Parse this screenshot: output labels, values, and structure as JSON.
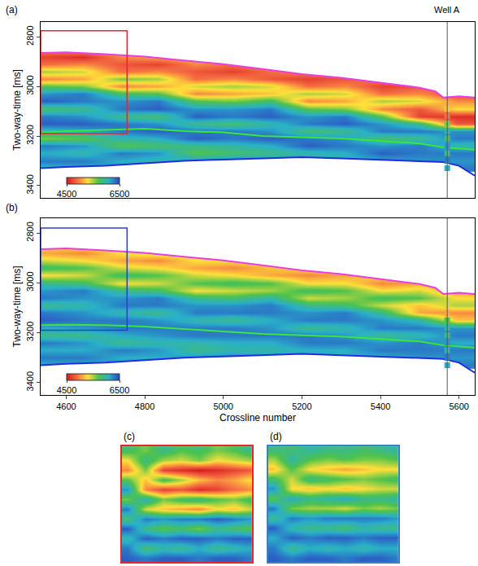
{
  "chart_data": [
    {
      "type": "heatmap",
      "title": "(a)",
      "ylabel": "Two-way-time [ms]",
      "tick_labels": "y",
      "xlim": [
        4535,
        5640
      ],
      "ylim": [
        2740,
        3450
      ],
      "xticks": [
        4600,
        4800,
        5000,
        5200,
        5400,
        5600
      ],
      "yticks": [
        2800,
        3000,
        3200,
        3400
      ],
      "colorbar": {
        "range": [
          4500,
          6500
        ],
        "ticks": [
          4500,
          6500
        ]
      },
      "x": [
        4550,
        4645,
        4740,
        4835,
        4930,
        5025,
        5120,
        5215,
        5310,
        5405,
        5500,
        5595
      ],
      "y": [
        2850,
        2880,
        2910,
        2940,
        2970,
        3000,
        3030,
        3060,
        3090,
        3120,
        3150,
        3180,
        3210,
        3240,
        3270,
        3300,
        3330
      ],
      "z": [
        [
          5000,
          5100,
          5200,
          5200,
          5200,
          5200,
          5200,
          5200,
          5200,
          5200,
          5200,
          5200
        ],
        [
          4700,
          4600,
          5000,
          5100,
          5200,
          5200,
          5200,
          5200,
          5200,
          5200,
          5200,
          5200
        ],
        [
          4900,
          5000,
          4800,
          4700,
          5000,
          4900,
          5100,
          5200,
          5200,
          5200,
          5200,
          5200
        ],
        [
          5500,
          5400,
          4900,
          5000,
          4800,
          4700,
          4900,
          5000,
          4900,
          5200,
          5200,
          5200
        ],
        [
          5000,
          5100,
          5600,
          5500,
          4900,
          5000,
          4800,
          4700,
          4800,
          5000,
          4900,
          5200
        ],
        [
          5700,
          5600,
          5000,
          5100,
          5400,
          5500,
          5400,
          4900,
          5000,
          4700,
          4800,
          5000
        ],
        [
          6200,
          6300,
          5800,
          5700,
          5000,
          5100,
          5200,
          5500,
          5400,
          4900,
          5000,
          4700
        ],
        [
          6400,
          6300,
          6200,
          6300,
          5700,
          5600,
          5800,
          5000,
          5100,
          5500,
          5400,
          5000
        ],
        [
          5800,
          5900,
          6300,
          6400,
          6200,
          6200,
          6300,
          5700,
          5600,
          5000,
          4800,
          5300
        ],
        [
          6300,
          6200,
          5900,
          5800,
          6400,
          6300,
          6400,
          6200,
          6300,
          5700,
          4700,
          4600
        ],
        [
          6400,
          6400,
          6300,
          6200,
          5900,
          5800,
          6000,
          6300,
          6400,
          6200,
          5900,
          4800
        ],
        [
          6000,
          6100,
          6300,
          6400,
          6300,
          6300,
          6200,
          5800,
          5900,
          6300,
          6300,
          6200
        ],
        [
          5600,
          5700,
          6000,
          6100,
          6400,
          6300,
          6400,
          6300,
          6200,
          5800,
          5900,
          6300
        ],
        [
          6300,
          6200,
          5700,
          5800,
          5900,
          6000,
          6100,
          6400,
          6300,
          6200,
          6300,
          6000
        ],
        [
          6100,
          6000,
          6300,
          6200,
          5700,
          5800,
          5900,
          6000,
          6100,
          6400,
          6300,
          6300
        ],
        [
          6300,
          6300,
          6100,
          6000,
          6200,
          6300,
          6200,
          6100,
          6000,
          6100,
          6200,
          6200
        ],
        [
          6000,
          6100,
          6200,
          6300,
          6100,
          6000,
          6100,
          6200,
          6300,
          6200,
          6100,
          6300
        ]
      ],
      "horizons": [
        {
          "color": "#e83fe0",
          "x": [
            4535,
            4600,
            4700,
            4800,
            4900,
            5000,
            5100,
            5200,
            5300,
            5400,
            5500,
            5540,
            5560,
            5600,
            5640
          ],
          "y": [
            2865,
            2862,
            2870,
            2880,
            2895,
            2910,
            2930,
            2950,
            2965,
            2985,
            3005,
            3020,
            3045,
            3040,
            3045
          ]
        },
        {
          "color": "#39e639",
          "x": [
            4535,
            4600,
            4700,
            4800,
            4900,
            5000,
            5100,
            5200,
            5300,
            5400,
            5500,
            5560,
            5640
          ],
          "y": [
            3185,
            3180,
            3175,
            3170,
            3180,
            3185,
            3200,
            3205,
            3210,
            3220,
            3230,
            3245,
            3255
          ]
        },
        {
          "color": "#1f2fe0",
          "x": [
            4535,
            4600,
            4700,
            4800,
            4900,
            5000,
            5100,
            5200,
            5300,
            5400,
            5500,
            5560,
            5600,
            5640
          ],
          "y": [
            3330,
            3325,
            3320,
            3310,
            3300,
            3295,
            3290,
            3285,
            3290,
            3295,
            3300,
            3305,
            3320,
            3360
          ]
        }
      ],
      "well": {
        "label": "Well A",
        "x": 5570,
        "twt": [
          3090,
          3120,
          3150,
          3180,
          3210,
          3240,
          3270,
          3300,
          3330
        ],
        "values": [
          5200,
          4900,
          5600,
          6000,
          5800,
          6200,
          5900,
          6300,
          6100
        ]
      },
      "boxes": [
        {
          "color": "#e8262b",
          "x": [
            4535,
            4755
          ],
          "y": [
            2775,
            3190
          ]
        }
      ]
    },
    {
      "type": "heatmap",
      "title": "(b)",
      "xlabel": "Crossline number",
      "ylabel": "Two-way-time [ms]",
      "xlim": [
        4535,
        5640
      ],
      "ylim": [
        2740,
        3450
      ],
      "xticks": [
        4600,
        4800,
        5000,
        5200,
        5400,
        5600
      ],
      "yticks": [
        2800,
        3000,
        3200,
        3400
      ],
      "colorbar": {
        "range": [
          4500,
          6500
        ],
        "ticks": [
          4500,
          6500
        ]
      },
      "x": [
        4550,
        4645,
        4740,
        4835,
        4930,
        5025,
        5120,
        5215,
        5310,
        5405,
        5500,
        5595
      ],
      "y": [
        2850,
        2880,
        2910,
        2940,
        2970,
        3000,
        3030,
        3060,
        3090,
        3120,
        3150,
        3180,
        3210,
        3240,
        3270,
        3300,
        3330
      ],
      "z": [
        [
          5300,
          5300,
          5400,
          5400,
          5400,
          5400,
          5400,
          5400,
          5400,
          5400,
          5400,
          5400
        ],
        [
          5100,
          5000,
          5300,
          5400,
          5400,
          5400,
          5400,
          5400,
          5400,
          5400,
          5400,
          5400
        ],
        [
          5400,
          5300,
          5100,
          5000,
          5300,
          5300,
          5400,
          5400,
          5400,
          5400,
          5400,
          5400
        ],
        [
          5800,
          5700,
          5400,
          5300,
          5100,
          5000,
          5200,
          5300,
          5300,
          5400,
          5400,
          5400
        ],
        [
          5300,
          5400,
          5800,
          5700,
          5400,
          5300,
          5100,
          5000,
          5100,
          5300,
          5200,
          5400
        ],
        [
          5900,
          5800,
          5300,
          5400,
          5700,
          5800,
          5700,
          5300,
          5300,
          5000,
          5100,
          5300
        ],
        [
          6200,
          6300,
          5900,
          5800,
          5300,
          5400,
          5500,
          5800,
          5700,
          5300,
          5400,
          5000
        ],
        [
          6300,
          6200,
          6200,
          6300,
          5900,
          5800,
          6000,
          5400,
          5500,
          5800,
          5700,
          5300
        ],
        [
          5900,
          6000,
          6300,
          6300,
          6200,
          6200,
          6300,
          5900,
          5800,
          5400,
          5200,
          5500
        ],
        [
          6300,
          6200,
          6000,
          5900,
          6300,
          6300,
          6300,
          6200,
          6300,
          5900,
          5100,
          5000
        ],
        [
          6400,
          6300,
          6300,
          6200,
          6000,
          5900,
          6100,
          6300,
          6300,
          6200,
          6000,
          5200
        ],
        [
          6100,
          6200,
          6300,
          6300,
          6300,
          6300,
          6200,
          5900,
          6000,
          6300,
          6300,
          6200
        ],
        [
          5900,
          5900,
          6100,
          6200,
          6300,
          6300,
          6300,
          6300,
          6200,
          5900,
          6000,
          6300
        ],
        [
          6300,
          6200,
          5900,
          6000,
          6000,
          6100,
          6100,
          6300,
          6300,
          6200,
          6300,
          6100
        ],
        [
          6100,
          6100,
          6300,
          6200,
          5900,
          6000,
          6000,
          6100,
          6100,
          6300,
          6300,
          6300
        ],
        [
          6300,
          6300,
          6100,
          6100,
          6200,
          6300,
          6200,
          6100,
          6100,
          6100,
          6200,
          6200
        ],
        [
          6100,
          6100,
          6200,
          6300,
          6100,
          6100,
          6100,
          6200,
          6300,
          6200,
          6100,
          6300
        ]
      ],
      "horizons": [
        {
          "color": "#e83fe0",
          "x": [
            4535,
            4600,
            4700,
            4800,
            4900,
            5000,
            5100,
            5200,
            5300,
            5400,
            5500,
            5540,
            5560,
            5600,
            5640
          ],
          "y": [
            2865,
            2862,
            2870,
            2880,
            2895,
            2910,
            2930,
            2950,
            2965,
            2985,
            3005,
            3020,
            3045,
            3040,
            3045
          ]
        },
        {
          "color": "#39e639",
          "x": [
            4535,
            4600,
            4700,
            4800,
            4900,
            5000,
            5100,
            5200,
            5300,
            5400,
            5500,
            5560,
            5640
          ],
          "y": [
            3170,
            3168,
            3170,
            3175,
            3185,
            3195,
            3205,
            3210,
            3215,
            3225,
            3235,
            3250,
            3260
          ]
        },
        {
          "color": "#1f2fe0",
          "x": [
            4535,
            4600,
            4700,
            4800,
            4900,
            5000,
            5100,
            5200,
            5300,
            5400,
            5500,
            5560,
            5600,
            5640
          ],
          "y": [
            3330,
            3325,
            3320,
            3310,
            3300,
            3295,
            3290,
            3285,
            3290,
            3295,
            3300,
            3305,
            3320,
            3360
          ]
        }
      ],
      "well": {
        "x": 5570,
        "twt": [
          3090,
          3120,
          3150,
          3180,
          3210,
          3240,
          3270,
          3300,
          3330
        ],
        "values": [
          5400,
          5100,
          5700,
          6000,
          5900,
          6200,
          6000,
          6300,
          6100
        ]
      },
      "boxes": [
        {
          "color": "#2a3fd0",
          "x": [
            4535,
            4755
          ],
          "y": [
            2780,
            3190
          ]
        }
      ]
    },
    {
      "type": "heatmap",
      "title": "(c)",
      "tick_labels": false,
      "color": "#e8262b",
      "xlim": [
        4535,
        4755
      ],
      "ylim": [
        2775,
        3190
      ],
      "zlim": [
        4500,
        6500
      ],
      "x": [
        4545,
        4575,
        4605,
        4635,
        4665,
        4695,
        4725,
        4750
      ],
      "y": [
        2790,
        2825,
        2860,
        2895,
        2930,
        2965,
        3000,
        3035,
        3070,
        3105,
        3140,
        3175
      ],
      "z": [
        [
          5800,
          5600,
          5900,
          5700,
          5800,
          5600,
          5700,
          5900
        ],
        [
          5300,
          5900,
          5500,
          5400,
          5600,
          5300,
          5400,
          5500
        ],
        [
          5000,
          5600,
          4700,
          4600,
          4500,
          4600,
          4700,
          4800
        ],
        [
          5700,
          5200,
          5800,
          5500,
          5200,
          5000,
          5100,
          5300
        ],
        [
          6200,
          5000,
          4700,
          4800,
          4600,
          4700,
          4900,
          5000
        ],
        [
          5600,
          6100,
          5600,
          5800,
          5900,
          5700,
          5600,
          5800
        ],
        [
          6300,
          5400,
          5200,
          5100,
          5000,
          5300,
          5200,
          5400
        ],
        [
          5800,
          6300,
          6200,
          6300,
          6300,
          6400,
          6300,
          6200
        ],
        [
          6400,
          5900,
          5700,
          5800,
          5600,
          5900,
          5800,
          5700
        ],
        [
          6000,
          6400,
          6300,
          6400,
          6400,
          6300,
          6400,
          6400
        ],
        [
          6300,
          5800,
          6000,
          5900,
          6100,
          5900,
          6000,
          6100
        ],
        [
          6400,
          6300,
          6400,
          6400,
          6300,
          6400,
          6400,
          6300
        ]
      ]
    },
    {
      "type": "heatmap",
      "title": "(d)",
      "tick_labels": false,
      "color": "#3b7fc4",
      "xlim": [
        4535,
        4755
      ],
      "ylim": [
        2780,
        3190
      ],
      "zlim": [
        4500,
        6500
      ],
      "x": [
        4545,
        4575,
        4605,
        4635,
        4665,
        4695,
        4725,
        4750
      ],
      "y": [
        2790,
        2825,
        2860,
        2895,
        2930,
        2965,
        3000,
        3035,
        3070,
        3105,
        3140,
        3175
      ],
      "z": [
        [
          5900,
          5800,
          6000,
          5900,
          5900,
          5800,
          5900,
          6000
        ],
        [
          5500,
          6000,
          5700,
          5600,
          5700,
          5600,
          5600,
          5700
        ],
        [
          5200,
          5700,
          5300,
          5200,
          5100,
          5200,
          5300,
          5300
        ],
        [
          5800,
          5400,
          5900,
          5800,
          5700,
          5600,
          5700,
          5800
        ],
        [
          6200,
          5300,
          5200,
          5300,
          5200,
          5300,
          5400,
          5400
        ],
        [
          5700,
          6100,
          5900,
          6000,
          6100,
          5900,
          5900,
          6000
        ],
        [
          6300,
          5600,
          5500,
          5500,
          5400,
          5600,
          5500,
          5600
        ],
        [
          5900,
          6300,
          6200,
          6300,
          6300,
          6300,
          6300,
          6200
        ],
        [
          6400,
          6000,
          5900,
          5900,
          5800,
          6000,
          5900,
          5900
        ],
        [
          6100,
          6400,
          6300,
          6400,
          6400,
          6300,
          6400,
          6400
        ],
        [
          6300,
          5900,
          6100,
          6000,
          6100,
          6000,
          6100,
          6100
        ],
        [
          6400,
          6300,
          6400,
          6400,
          6300,
          6400,
          6400,
          6300
        ]
      ]
    }
  ]
}
